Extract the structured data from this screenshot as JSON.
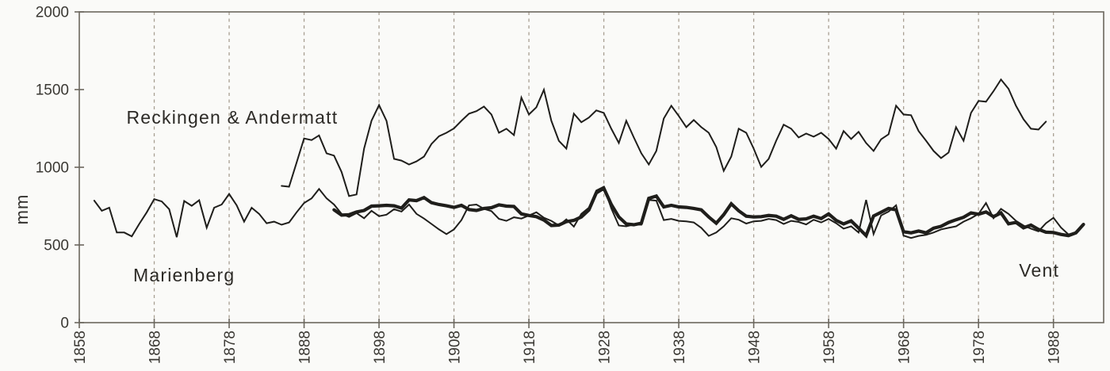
{
  "figure": {
    "unit_label": "mm"
  },
  "colors": {
    "line": "#1f1e1b",
    "frame": "#6b675e",
    "grid": "#a89f92",
    "tick_text": "#3a3833",
    "label_text": "#2c2a26",
    "background": "#fafaf8"
  },
  "chart_data": {
    "type": "line",
    "title": "",
    "xlabel": "",
    "ylabel": "mm",
    "ylim": [
      0,
      2000
    ],
    "xlim": [
      1858,
      1994.7
    ],
    "yticks": [
      0,
      500,
      1000,
      1500,
      2000
    ],
    "xticks": [
      1858,
      1868,
      1878,
      1888,
      1898,
      1908,
      1918,
      1928,
      1938,
      1948,
      1958,
      1968,
      1978,
      1988
    ],
    "grid": "vertical-dashed",
    "legend_position": "in-plot-annotations",
    "series": [
      {
        "name": "Reckingen & Andermatt",
        "start_year": 1885,
        "line_width": "thin",
        "values": [
          880,
          875,
          1030,
          1185,
          1175,
          1205,
          1090,
          1075,
          970,
          815,
          825,
          1120,
          1300,
          1400,
          1299,
          1054,
          1043,
          1018,
          1038,
          1069,
          1150,
          1200,
          1222,
          1250,
          1299,
          1345,
          1361,
          1391,
          1340,
          1222,
          1248,
          1207,
          1448,
          1340,
          1386,
          1499,
          1299,
          1170,
          1120,
          1345,
          1290,
          1320,
          1366,
          1350,
          1248,
          1156,
          1299,
          1192,
          1090,
          1018,
          1105,
          1314,
          1396,
          1330,
          1258,
          1304,
          1258,
          1222,
          1130,
          977,
          1069,
          1248,
          1222,
          1120,
          1002,
          1054,
          1171,
          1274,
          1248,
          1192,
          1217,
          1197,
          1222,
          1182,
          1120,
          1233,
          1182,
          1228,
          1156,
          1105,
          1180,
          1212,
          1396,
          1340,
          1335,
          1233,
          1171,
          1105,
          1059,
          1095,
          1258,
          1171,
          1350,
          1427,
          1422,
          1490,
          1565,
          1505,
          1396,
          1309,
          1248,
          1243,
          1294
        ]
      },
      {
        "name": "Marienberg",
        "start_year": 1860,
        "line_width": "thin",
        "values": [
          785,
          720,
          740,
          580,
          580,
          555,
          635,
          710,
          795,
          780,
          730,
          550,
          783,
          752,
          788,
          611,
          740,
          760,
          828,
          755,
          650,
          740,
          700,
          640,
          650,
          630,
          645,
          710,
          770,
          800,
          860,
          800,
          760,
          700,
          680,
          705,
          672,
          720,
          685,
          695,
          730,
          715,
          760,
          700,
          670,
          635,
          600,
          570,
          600,
          660,
          755,
          760,
          732,
          718,
          668,
          655,
          678,
          670,
          690,
          710,
          675,
          655,
          625,
          665,
          618,
          700,
          740,
          850,
          875,
          735,
          625,
          620,
          632,
          630,
          790,
          785,
          660,
          668,
          655,
          652,
          645,
          610,
          558,
          580,
          620,
          672,
          662,
          638,
          652,
          655,
          668,
          660,
          635,
          655,
          648,
          632,
          662,
          645,
          668,
          640,
          605,
          620,
          580,
          790,
          570,
          690,
          715,
          755,
          560,
          545,
          558,
          565,
          580,
          600,
          610,
          620,
          650,
          672,
          700,
          770,
          672,
          732,
          700,
          655,
          625,
          605,
          588,
          640,
          675,
          612,
          568,
          582,
          635
        ]
      },
      {
        "name": "Vent",
        "start_year": 1892,
        "line_width": "thick",
        "values": [
          726,
          692,
          695,
          712,
          722,
          750,
          752,
          755,
          752,
          737,
          790,
          785,
          805,
          772,
          760,
          752,
          742,
          755,
          728,
          722,
          735,
          740,
          758,
          750,
          748,
          700,
          690,
          682,
          660,
          625,
          628,
          650,
          658,
          680,
          725,
          835,
          865,
          760,
          680,
          635,
          630,
          640,
          800,
          815,
          745,
          755,
          745,
          742,
          735,
          726,
          680,
          640,
          695,
          765,
          720,
          685,
          680,
          682,
          690,
          685,
          665,
          688,
          665,
          668,
          685,
          670,
          700,
          658,
          635,
          655,
          608,
          560,
          686,
          710,
          735,
          726,
          585,
          578,
          590,
          578,
          608,
          620,
          645,
          662,
          678,
          706,
          698,
          712,
          682,
          706,
          636,
          645,
          610,
          628,
          600,
          582,
          580,
          568,
          560,
          578,
          632
        ]
      }
    ],
    "annotations": [
      {
        "text": "Reckingen & Andermatt",
        "x": 1864.3,
        "y": 1280
      },
      {
        "text": "Marienberg",
        "x": 1865.2,
        "y": 265
      },
      {
        "text": "Vent",
        "x": 1983.4,
        "y": 296
      }
    ]
  }
}
